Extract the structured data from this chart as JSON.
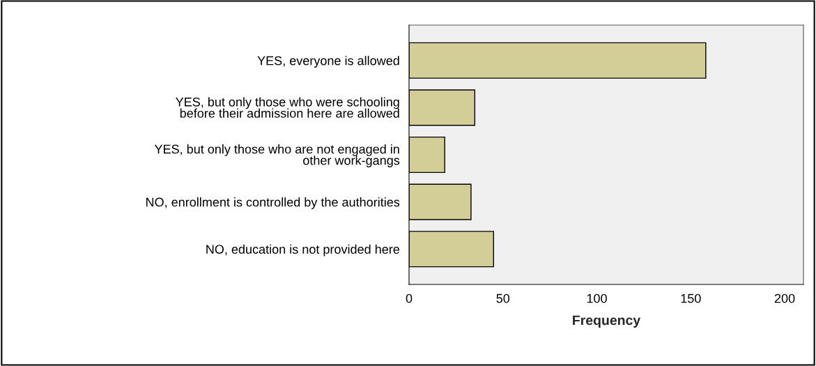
{
  "chart_data": {
    "type": "bar",
    "orientation": "horizontal",
    "xlabel": "Frequency",
    "categories": [
      "YES, everyone is allowed",
      "YES, but only those who were schooling\nbefore their admission here are allowed",
      "YES, but only those who are not engaged in\nother work-gangs",
      "NO, enrollment is controlled by the authorities",
      "NO, education is not provided here"
    ],
    "values": [
      158,
      35,
      19,
      33,
      45
    ],
    "color": "#d3ce97",
    "xlim": [
      0,
      210
    ],
    "xticks": [
      0,
      50,
      100,
      150,
      200
    ],
    "grid": false
  }
}
